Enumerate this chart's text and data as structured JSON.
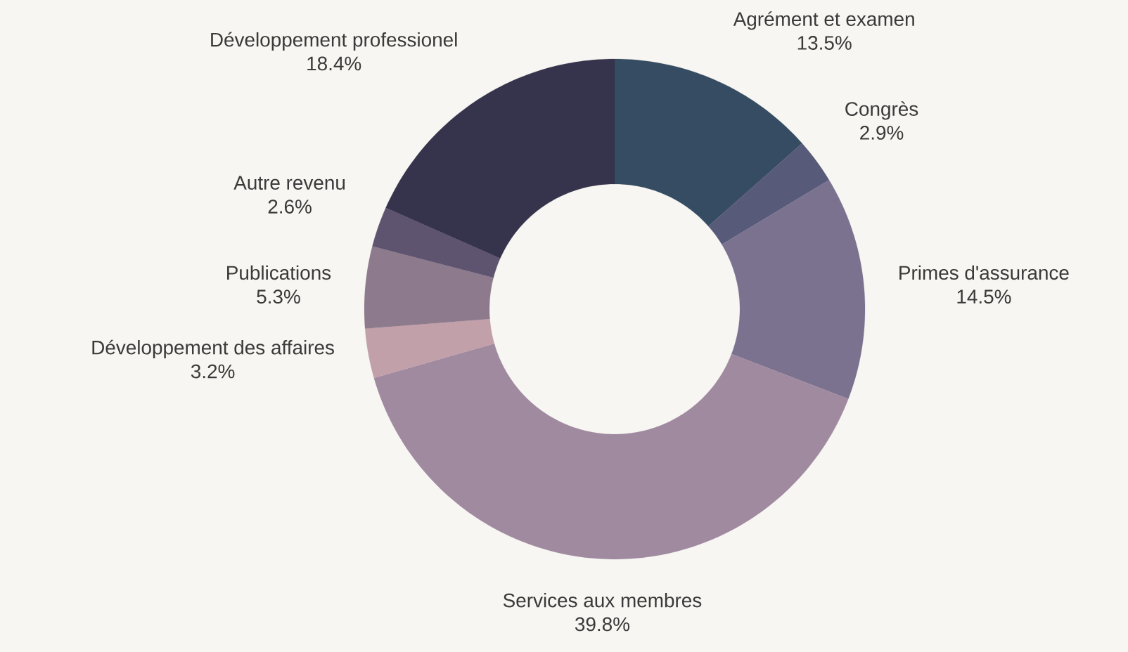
{
  "chart_data": {
    "type": "donut",
    "categories": [
      "Agrément et examen",
      "Congrès",
      "Primes d'assurance",
      "Services aux membres",
      "Développement des affaires",
      "Publications",
      "Autre revenu",
      "Développement professionel"
    ],
    "values": [
      13.5,
      2.9,
      14.5,
      39.8,
      3.2,
      5.3,
      2.6,
      18.4
    ],
    "value_labels": [
      "13.5%",
      "2.9%",
      "14.5%",
      "39.8%",
      "3.2%",
      "5.3%",
      "2.6%",
      "18.4%"
    ],
    "colors": [
      "#364c63",
      "#575a78",
      "#7b7290",
      "#a08aa0",
      "#c2a0aa",
      "#8d7a8c",
      "#5e5470",
      "#36334d"
    ]
  }
}
